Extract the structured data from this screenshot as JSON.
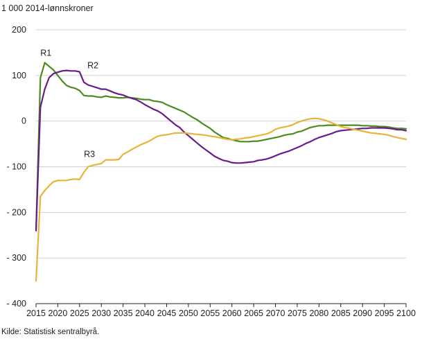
{
  "chart_data": {
    "type": "line",
    "unit_label": "1 000 2014-lønnskroner",
    "source": "Kilde: Statistisk sentralbyrå.",
    "xlim": [
      2015,
      2100
    ],
    "ylim": [
      -400,
      200
    ],
    "x_ticks": [
      2015,
      2020,
      2025,
      2030,
      2035,
      2040,
      2045,
      2050,
      2055,
      2060,
      2065,
      2070,
      2075,
      2080,
      2085,
      2090,
      2095,
      2100
    ],
    "x_tick_labels": [
      "2015",
      "2020",
      "2025",
      "2030",
      "2035",
      "2040",
      "2045",
      "2050",
      "2055",
      "2060",
      "2065",
      "2070",
      "2075",
      "2080",
      "2085",
      "2090",
      "2095",
      "2100"
    ],
    "y_ticks": [
      200,
      100,
      0,
      -100,
      -200,
      -300,
      -400
    ],
    "y_tick_labels": [
      "200",
      "100",
      "0",
      "- 100",
      "- 200",
      "- 300",
      "- 400"
    ],
    "grid": "horizontal",
    "series": [
      {
        "name": "R1",
        "color": "#4c8a1e",
        "label_x": 2016.0,
        "label_y": 143,
        "points": [
          [
            2015,
            -240
          ],
          [
            2016,
            95
          ],
          [
            2017,
            128
          ],
          [
            2018,
            120
          ],
          [
            2019,
            112
          ],
          [
            2020,
            100
          ],
          [
            2021,
            88
          ],
          [
            2022,
            78
          ],
          [
            2023,
            74
          ],
          [
            2024,
            72
          ],
          [
            2025,
            67
          ],
          [
            2026,
            56
          ],
          [
            2027,
            55
          ],
          [
            2028,
            55
          ],
          [
            2029,
            53
          ],
          [
            2030,
            52
          ],
          [
            2031,
            55
          ],
          [
            2032,
            53
          ],
          [
            2033,
            52
          ],
          [
            2034,
            51
          ],
          [
            2035,
            51
          ],
          [
            2036,
            52
          ],
          [
            2037,
            51
          ],
          [
            2038,
            50
          ],
          [
            2039,
            48
          ],
          [
            2040,
            47
          ],
          [
            2041,
            47
          ],
          [
            2042,
            44
          ],
          [
            2043,
            43
          ],
          [
            2044,
            41
          ],
          [
            2045,
            36
          ],
          [
            2046,
            32
          ],
          [
            2047,
            28
          ],
          [
            2048,
            24
          ],
          [
            2049,
            20
          ],
          [
            2050,
            14
          ],
          [
            2051,
            8
          ],
          [
            2052,
            3
          ],
          [
            2053,
            -4
          ],
          [
            2054,
            -10
          ],
          [
            2055,
            -16
          ],
          [
            2056,
            -24
          ],
          [
            2057,
            -30
          ],
          [
            2058,
            -36
          ],
          [
            2059,
            -38
          ],
          [
            2060,
            -41
          ],
          [
            2061,
            -43
          ],
          [
            2062,
            -45
          ],
          [
            2063,
            -45
          ],
          [
            2064,
            -45
          ],
          [
            2065,
            -44
          ],
          [
            2066,
            -44
          ],
          [
            2067,
            -42
          ],
          [
            2068,
            -40
          ],
          [
            2069,
            -38
          ],
          [
            2070,
            -36
          ],
          [
            2071,
            -34
          ],
          [
            2072,
            -31
          ],
          [
            2073,
            -29
          ],
          [
            2074,
            -28
          ],
          [
            2075,
            -24
          ],
          [
            2076,
            -22
          ],
          [
            2077,
            -18
          ],
          [
            2078,
            -14
          ],
          [
            2079,
            -12
          ],
          [
            2080,
            -10
          ],
          [
            2081,
            -10
          ],
          [
            2082,
            -9
          ],
          [
            2083,
            -9
          ],
          [
            2084,
            -9
          ],
          [
            2085,
            -9
          ],
          [
            2086,
            -9
          ],
          [
            2087,
            -9
          ],
          [
            2088,
            -9
          ],
          [
            2089,
            -9
          ],
          [
            2090,
            -10
          ],
          [
            2091,
            -10
          ],
          [
            2092,
            -11
          ],
          [
            2093,
            -11
          ],
          [
            2094,
            -12
          ],
          [
            2095,
            -12
          ],
          [
            2096,
            -13
          ],
          [
            2097,
            -15
          ],
          [
            2098,
            -16
          ],
          [
            2099,
            -16
          ],
          [
            2100,
            -17
          ]
        ]
      },
      {
        "name": "R2",
        "color": "#6a1b8a",
        "label_x": 2026.8,
        "label_y": 116,
        "points": [
          [
            2015,
            -240
          ],
          [
            2016,
            30
          ],
          [
            2017,
            70
          ],
          [
            2018,
            95
          ],
          [
            2019,
            104
          ],
          [
            2020,
            107
          ],
          [
            2021,
            110
          ],
          [
            2022,
            111
          ],
          [
            2023,
            110
          ],
          [
            2024,
            110
          ],
          [
            2025,
            108
          ],
          [
            2026,
            85
          ],
          [
            2027,
            79
          ],
          [
            2028,
            76
          ],
          [
            2029,
            73
          ],
          [
            2030,
            70
          ],
          [
            2031,
            70
          ],
          [
            2032,
            66
          ],
          [
            2033,
            62
          ],
          [
            2034,
            59
          ],
          [
            2035,
            57
          ],
          [
            2036,
            53
          ],
          [
            2037,
            50
          ],
          [
            2038,
            47
          ],
          [
            2039,
            42
          ],
          [
            2040,
            36
          ],
          [
            2041,
            31
          ],
          [
            2042,
            26
          ],
          [
            2043,
            22
          ],
          [
            2044,
            16
          ],
          [
            2045,
            8
          ],
          [
            2046,
            0
          ],
          [
            2047,
            -8
          ],
          [
            2048,
            -14
          ],
          [
            2049,
            -24
          ],
          [
            2050,
            -32
          ],
          [
            2051,
            -40
          ],
          [
            2052,
            -48
          ],
          [
            2053,
            -56
          ],
          [
            2054,
            -63
          ],
          [
            2055,
            -70
          ],
          [
            2056,
            -77
          ],
          [
            2057,
            -82
          ],
          [
            2058,
            -86
          ],
          [
            2059,
            -88
          ],
          [
            2060,
            -91
          ],
          [
            2061,
            -92
          ],
          [
            2062,
            -92
          ],
          [
            2063,
            -91
          ],
          [
            2064,
            -90
          ],
          [
            2065,
            -89
          ],
          [
            2066,
            -86
          ],
          [
            2067,
            -85
          ],
          [
            2068,
            -83
          ],
          [
            2069,
            -80
          ],
          [
            2070,
            -76
          ],
          [
            2071,
            -72
          ],
          [
            2072,
            -69
          ],
          [
            2073,
            -66
          ],
          [
            2074,
            -62
          ],
          [
            2075,
            -58
          ],
          [
            2076,
            -54
          ],
          [
            2077,
            -49
          ],
          [
            2078,
            -45
          ],
          [
            2079,
            -40
          ],
          [
            2080,
            -36
          ],
          [
            2081,
            -33
          ],
          [
            2082,
            -30
          ],
          [
            2083,
            -27
          ],
          [
            2084,
            -23
          ],
          [
            2085,
            -21
          ],
          [
            2086,
            -20
          ],
          [
            2087,
            -19
          ],
          [
            2088,
            -18
          ],
          [
            2089,
            -17
          ],
          [
            2090,
            -16
          ],
          [
            2091,
            -16
          ],
          [
            2092,
            -15
          ],
          [
            2093,
            -15
          ],
          [
            2094,
            -15
          ],
          [
            2095,
            -15
          ],
          [
            2096,
            -16
          ],
          [
            2097,
            -17
          ],
          [
            2098,
            -19
          ],
          [
            2099,
            -19
          ],
          [
            2100,
            -21
          ]
        ]
      },
      {
        "name": "R3",
        "color": "#e8b33a",
        "label_x": 2026.0,
        "label_y": -79,
        "points": [
          [
            2015,
            -350
          ],
          [
            2016,
            -165
          ],
          [
            2017,
            -152
          ],
          [
            2018,
            -142
          ],
          [
            2019,
            -133
          ],
          [
            2020,
            -130
          ],
          [
            2021,
            -130
          ],
          [
            2022,
            -130
          ],
          [
            2023,
            -128
          ],
          [
            2024,
            -127
          ],
          [
            2025,
            -128
          ],
          [
            2026,
            -112
          ],
          [
            2027,
            -100
          ],
          [
            2028,
            -97
          ],
          [
            2029,
            -95
          ],
          [
            2030,
            -93
          ],
          [
            2031,
            -85
          ],
          [
            2032,
            -85
          ],
          [
            2033,
            -85
          ],
          [
            2034,
            -84
          ],
          [
            2035,
            -73
          ],
          [
            2036,
            -68
          ],
          [
            2037,
            -62
          ],
          [
            2038,
            -57
          ],
          [
            2039,
            -52
          ],
          [
            2040,
            -48
          ],
          [
            2041,
            -44
          ],
          [
            2042,
            -38
          ],
          [
            2043,
            -33
          ],
          [
            2044,
            -31
          ],
          [
            2045,
            -30
          ],
          [
            2046,
            -28
          ],
          [
            2047,
            -26
          ],
          [
            2048,
            -26
          ],
          [
            2049,
            -26
          ],
          [
            2050,
            -27
          ],
          [
            2051,
            -28
          ],
          [
            2052,
            -29
          ],
          [
            2053,
            -30
          ],
          [
            2054,
            -31
          ],
          [
            2055,
            -33
          ],
          [
            2056,
            -34
          ],
          [
            2057,
            -36
          ],
          [
            2058,
            -38
          ],
          [
            2059,
            -40
          ],
          [
            2060,
            -41
          ],
          [
            2061,
            -40
          ],
          [
            2062,
            -39
          ],
          [
            2063,
            -37
          ],
          [
            2064,
            -36
          ],
          [
            2065,
            -34
          ],
          [
            2066,
            -32
          ],
          [
            2067,
            -30
          ],
          [
            2068,
            -28
          ],
          [
            2069,
            -24
          ],
          [
            2070,
            -18
          ],
          [
            2071,
            -15
          ],
          [
            2072,
            -13
          ],
          [
            2073,
            -11
          ],
          [
            2074,
            -8
          ],
          [
            2075,
            -3
          ],
          [
            2076,
            0
          ],
          [
            2077,
            3
          ],
          [
            2078,
            5
          ],
          [
            2079,
            6
          ],
          [
            2080,
            5
          ],
          [
            2081,
            3
          ],
          [
            2082,
            0
          ],
          [
            2083,
            -4
          ],
          [
            2084,
            -8
          ],
          [
            2085,
            -12
          ],
          [
            2086,
            -14
          ],
          [
            2087,
            -16
          ],
          [
            2088,
            -18
          ],
          [
            2089,
            -20
          ],
          [
            2090,
            -22
          ],
          [
            2091,
            -24
          ],
          [
            2092,
            -26
          ],
          [
            2093,
            -27
          ],
          [
            2094,
            -28
          ],
          [
            2095,
            -29
          ],
          [
            2096,
            -31
          ],
          [
            2097,
            -34
          ],
          [
            2098,
            -36
          ],
          [
            2099,
            -38
          ],
          [
            2100,
            -40
          ]
        ]
      }
    ]
  }
}
